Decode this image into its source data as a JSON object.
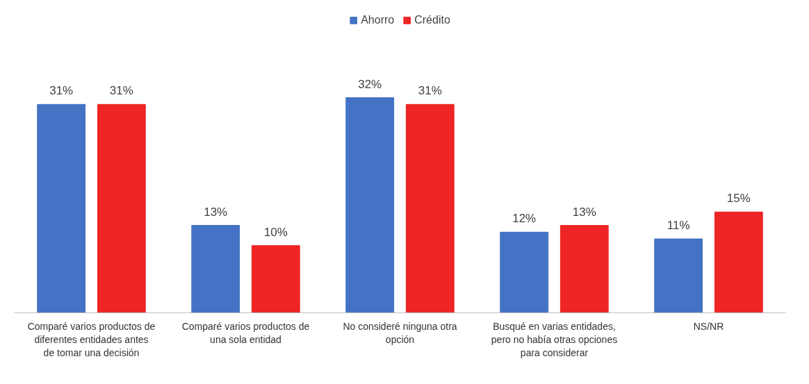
{
  "chart_data": {
    "type": "bar",
    "categories": [
      "Comparé varios productos de diferentes entidades antes de tomar una decisión",
      "Comparé varios productos de una sola entidad",
      "No consideré ninguna otra opción",
      "Busqué en varias entidades, pero no había otras opciones para considerar",
      "NS/NR"
    ],
    "series": [
      {
        "name": "Ahorro",
        "color": "#4472c4",
        "values": [
          31,
          13,
          32,
          12,
          11
        ],
        "value_labels": [
          "31%",
          "13%",
          "32%",
          "12%",
          "11%"
        ]
      },
      {
        "name": "Crédito",
        "color": "#ee2524",
        "values": [
          31,
          10,
          31,
          13,
          15
        ],
        "value_labels": [
          "31%",
          "10%",
          "31%",
          "13%",
          "15%"
        ]
      }
    ],
    "legend": "top",
    "grid": false
  }
}
